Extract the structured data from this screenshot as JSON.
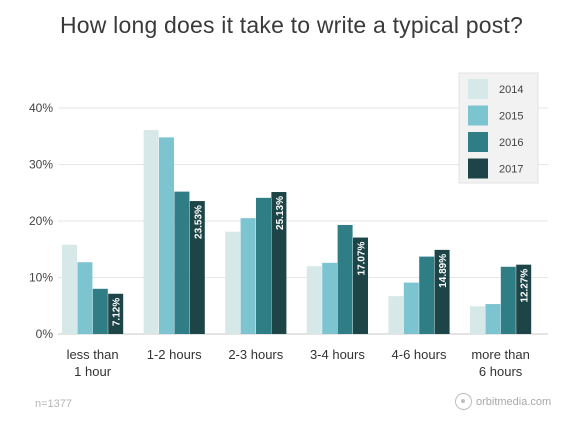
{
  "chart_data": {
    "type": "bar",
    "title": "How long does it take to write a typical post?",
    "categories": [
      [
        "less than",
        "1 hour"
      ],
      [
        "1-2 hours"
      ],
      [
        "2-3 hours"
      ],
      [
        "3-4 hours"
      ],
      [
        "4-6 hours"
      ],
      [
        "more than",
        "6 hours"
      ]
    ],
    "series": [
      {
        "name": "2014",
        "color": "#d6e8e8",
        "values": [
          15.8,
          36.1,
          18.1,
          12.0,
          6.7,
          4.9
        ]
      },
      {
        "name": "2015",
        "color": "#7cc4cf",
        "values": [
          12.7,
          34.8,
          20.5,
          12.6,
          9.1,
          5.3
        ]
      },
      {
        "name": "2016",
        "color": "#2f7e85",
        "values": [
          8.0,
          25.2,
          24.1,
          19.3,
          13.7,
          11.9
        ]
      },
      {
        "name": "2017",
        "color": "#1d4548",
        "values": [
          7.12,
          23.53,
          25.13,
          17.07,
          14.89,
          12.27
        ],
        "labels": [
          "7.12%",
          "23.53%",
          "25.13%",
          "17.07%",
          "14.89%",
          "12.27%"
        ]
      }
    ],
    "y_ticks": [
      "0%",
      "10%",
      "20%",
      "30%",
      "40%"
    ],
    "ylim": [
      0,
      40
    ],
    "grid": true,
    "legend": "top-right",
    "annotation": "n=1377",
    "source": "orbitmedia.com"
  }
}
